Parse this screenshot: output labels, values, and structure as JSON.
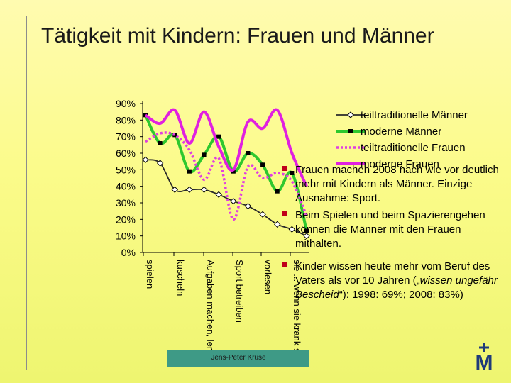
{
  "slide": {
    "title": "Tätigkeit mit Kindern: Frauen und Männer",
    "footer": "Jens-Peter Kruse",
    "logo_letter": "M"
  },
  "notes": {
    "note1": "Frauen machen 2008 nach wie vor deutlich mehr mit Kindern als Männer. Einzige Ausnahme: Sport.",
    "note2": "Beim Spielen und beim Spazierengehen können die Männer mit den Frauen mithalten.",
    "note3_a": "Kinder wissen heute mehr vom Beruf des  Vaters als vor 10 Jahren („",
    "note3_em": "wissen   ungefähr  Bescheid",
    "note3_b": "“): 1998: 69%; 2008: 83%)"
  },
  "colors": {
    "teiltrad_maenner": "#2a2a2a",
    "moderne_maenner": "#2ec82e",
    "teiltrad_frauen": "#e040e0",
    "moderne_frauen": "#e020e0",
    "bullet": "#c0001a",
    "footer_bg": "#3e9a86",
    "logo": "#1e3a7a"
  },
  "chart_data": {
    "type": "line",
    "title": "",
    "xlabel": "",
    "ylabel": "",
    "ylim": [
      0,
      90
    ],
    "yticks": [
      "0%",
      "10%",
      "20%",
      "30%",
      "40%",
      "50%",
      "60%",
      "70%",
      "80%",
      "90%"
    ],
    "categories": [
      "spielen",
      "kuscheln",
      "Aufgaben machen, lernen",
      "Sport betreiben",
      "vorlesen",
      "sie ... wenn sie krank sind"
    ],
    "x": [
      0,
      1,
      2,
      3,
      4,
      5,
      6,
      7,
      8,
      9,
      10,
      11
    ],
    "series": [
      {
        "name": "teiltraditionelle Männer",
        "values": [
          56,
          54,
          38,
          38,
          38,
          35,
          31,
          28,
          23,
          17,
          14,
          10
        ]
      },
      {
        "name": "moderne Männer",
        "values": [
          83,
          66,
          71,
          49,
          59,
          70,
          49,
          60,
          53,
          37,
          48,
          13
        ]
      },
      {
        "name": "teiltraditionelle Frauen",
        "values": [
          67,
          72,
          71,
          62,
          44,
          57,
          20,
          52,
          45,
          48,
          43,
          22
        ]
      },
      {
        "name": "moderne Frauen",
        "values": [
          83,
          78,
          86,
          66,
          85,
          64,
          50,
          79,
          75,
          86,
          60,
          40
        ]
      }
    ],
    "legend_position": "top-right",
    "grid": false
  }
}
